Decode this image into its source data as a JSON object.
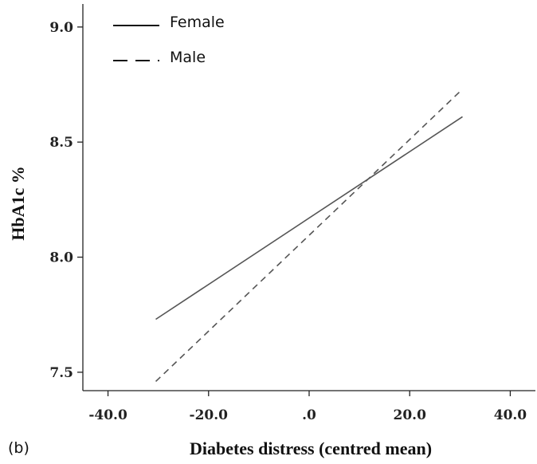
{
  "chart_data": {
    "type": "line",
    "panel_label": "(b)",
    "xlabel": "Diabetes distress (centred mean)",
    "ylabel": "HbA1c %",
    "xlim": [
      -45,
      45
    ],
    "ylim": [
      7.42,
      9.1
    ],
    "x_ticks": [
      {
        "value": -40,
        "label": "-40.0"
      },
      {
        "value": -20,
        "label": "-20.0"
      },
      {
        "value": 0,
        "label": ".0"
      },
      {
        "value": 20,
        "label": "20.0"
      },
      {
        "value": 40,
        "label": "40.0"
      }
    ],
    "y_ticks": [
      {
        "value": 7.5,
        "label": "7.5"
      },
      {
        "value": 8.0,
        "label": "8.0"
      },
      {
        "value": 8.5,
        "label": "8.5"
      },
      {
        "value": 9.0,
        "label": "9.0"
      }
    ],
    "grid": false,
    "legend_position": "top-left",
    "series": [
      {
        "name": "Female",
        "style": "solid",
        "color": "#555555",
        "x": [
          -30.5,
          30.5
        ],
        "y": [
          7.73,
          8.61
        ]
      },
      {
        "name": "Male",
        "style": "dashed",
        "color": "#555555",
        "x": [
          -30.5,
          30.5
        ],
        "y": [
          7.46,
          8.73
        ]
      }
    ]
  }
}
